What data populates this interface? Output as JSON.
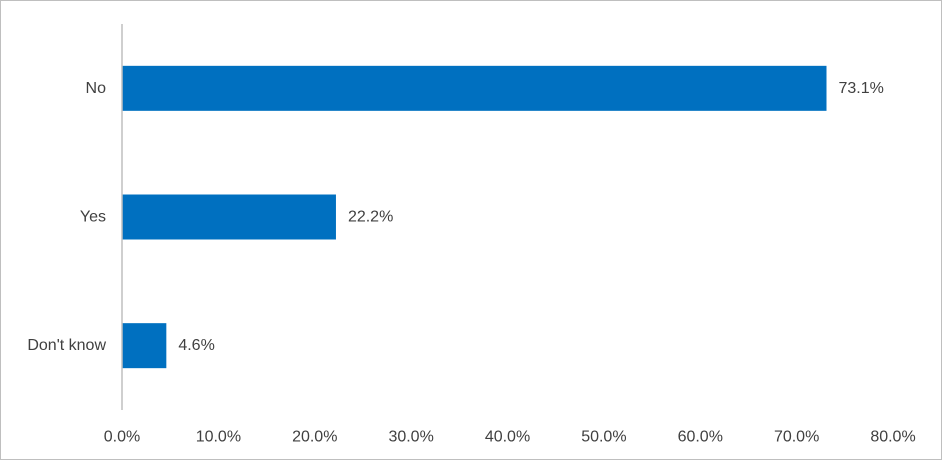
{
  "chart_data": {
    "type": "bar",
    "orientation": "horizontal",
    "categories": [
      "No",
      "Yes",
      "Don't know"
    ],
    "values": [
      73.1,
      22.2,
      4.6
    ],
    "data_labels": [
      "73.1%",
      "22.2%",
      "4.6%"
    ],
    "xlim": [
      0,
      80
    ],
    "x_ticks": [
      0,
      10,
      20,
      30,
      40,
      50,
      60,
      70,
      80
    ],
    "x_tick_labels": [
      "0.0%",
      "10.0%",
      "20.0%",
      "30.0%",
      "40.0%",
      "50.0%",
      "60.0%",
      "70.0%",
      "80.0%"
    ],
    "title": "",
    "xlabel": "",
    "ylabel": "",
    "grid": false,
    "legend": "none",
    "bar_color": "#0070C0",
    "axis_color": "#BFBFBF",
    "text_color": "#404040"
  }
}
